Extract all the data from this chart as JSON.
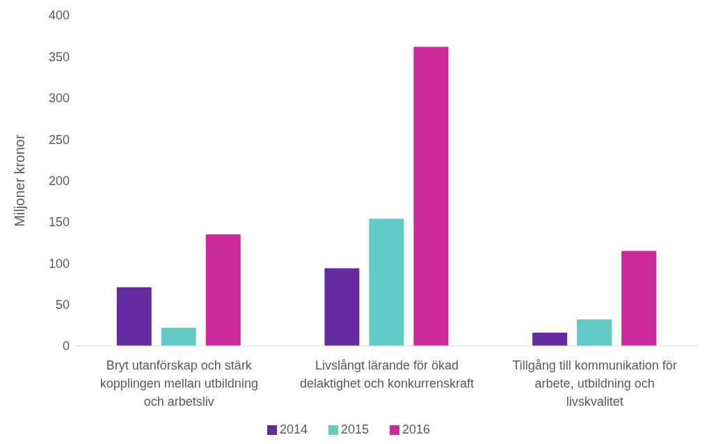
{
  "chart_data": {
    "type": "bar",
    "ylabel": "Miljoner kronor",
    "categories": [
      "Bryt utanförskap och stärk kopplingen mellan utbildning och arbetsliv",
      "Livslångt lärande för ökad delaktighet och konkurrenskraft",
      "Tillgång till kommunikation för arbete, utbildning och livskvalitet"
    ],
    "series": [
      {
        "name": "2014",
        "color": "#652aa0",
        "values": [
          71,
          94,
          16
        ]
      },
      {
        "name": "2015",
        "color": "#62cbc6",
        "values": [
          22,
          154,
          32
        ]
      },
      {
        "name": "2016",
        "color": "#cb2a9a",
        "values": [
          135,
          362,
          115
        ]
      }
    ],
    "ylim": [
      0,
      400
    ],
    "yticks": [
      0,
      50,
      100,
      150,
      200,
      250,
      300,
      350,
      400
    ],
    "grid": false,
    "legend": "bottom"
  }
}
